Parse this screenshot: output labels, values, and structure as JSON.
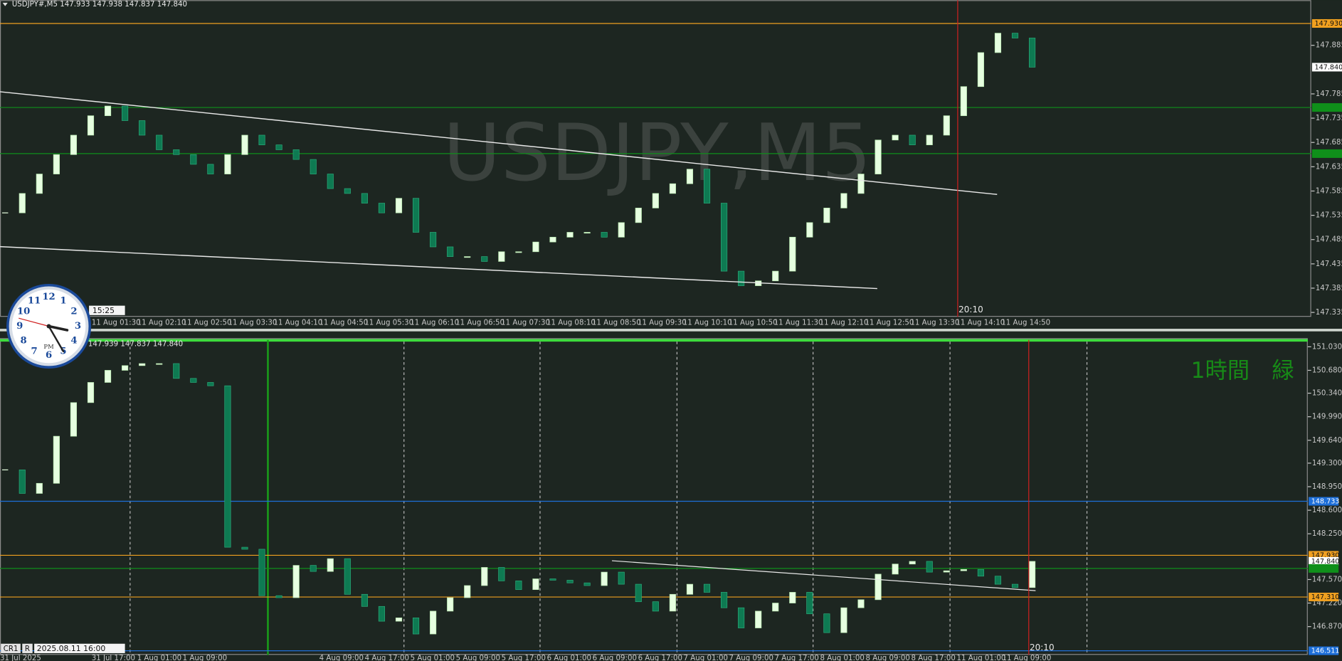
{
  "top": {
    "header": "USDJPY#,M5  147.933 147.938 147.837 147.840",
    "watermark": "USDJPY,M5",
    "ylim": [
      147.326,
      147.978
    ],
    "yticks": [
      147.885,
      147.785,
      147.735,
      147.685,
      147.635,
      147.585,
      147.535,
      147.485,
      147.435,
      147.385,
      147.335
    ],
    "levels": [
      {
        "value": 147.93,
        "label": "147.930",
        "color": "#f0a020"
      },
      {
        "value": 147.84,
        "label": "147.840",
        "color": "#ffffff"
      },
      {
        "value": 147.757,
        "color": "#0f8f1a"
      },
      {
        "value": 147.662,
        "color": "#0f8f1a"
      }
    ],
    "closes": [
      147.54,
      147.58,
      147.62,
      147.66,
      147.7,
      147.74,
      147.76,
      147.73,
      147.7,
      147.67,
      147.66,
      147.64,
      147.62,
      147.66,
      147.7,
      147.68,
      147.67,
      147.65,
      147.62,
      147.59,
      147.58,
      147.56,
      147.54,
      147.57,
      147.5,
      147.47,
      147.45,
      147.45,
      147.44,
      147.46,
      147.46,
      147.48,
      147.49,
      147.5,
      147.5,
      147.49,
      147.52,
      147.55,
      147.58,
      147.6,
      147.63,
      147.56,
      147.42,
      147.39,
      147.4,
      147.42,
      147.49,
      147.52,
      147.55,
      147.58,
      147.62,
      147.69,
      147.7,
      147.68,
      147.7,
      147.74,
      147.8,
      147.87,
      147.91,
      147.9,
      147.84
    ],
    "bull_color": "#e6ffe0",
    "bear_color": "#0e7a52",
    "xlabels": [
      "11 Aug 01:30",
      "11 Aug 02:10",
      "11 Aug 02:50",
      "11 Aug 03:30",
      "11 Aug 04:10",
      "11 Aug 04:50",
      "11 Aug 05:30",
      "11 Aug 06:10",
      "11 Aug 06:50",
      "11 Aug 07:30",
      "11 Aug 08:10",
      "11 Aug 08:50",
      "11 Aug 09:30",
      "11 Aug 10:10",
      "11 Aug 10:50",
      "11 Aug 11:30",
      "11 Aug 12:10",
      "11 Aug 12:50",
      "11 Aug 13:30",
      "11 Aug 14:10",
      "11 Aug 14:50"
    ],
    "cursor_time": "20:10",
    "clock_time": "15:25"
  },
  "bottom": {
    "header": "147.939 147.837 147.840",
    "annotation": "1時間　緑",
    "ylim": [
      146.45,
      151.132
    ],
    "yticks": [
      {
        "value": 151.03,
        "label": "151.030"
      },
      {
        "value": 150.68,
        "label": "150.680"
      },
      {
        "value": 150.34,
        "label": "150.340"
      },
      {
        "value": 149.99,
        "label": "149.990"
      },
      {
        "value": 149.64,
        "label": "149.640"
      },
      {
        "value": 149.3,
        "label": "149.300"
      },
      {
        "value": 148.95,
        "label": "148.950"
      },
      {
        "value": 148.6,
        "label": "148.600"
      },
      {
        "value": 148.25,
        "label": "148.250"
      },
      {
        "value": 147.57,
        "label": "147.570"
      },
      {
        "value": 147.22,
        "label": "147.220"
      },
      {
        "value": 146.87,
        "label": "146.870"
      }
    ],
    "levels": [
      {
        "value": 148.733,
        "label": "148.733",
        "color": "#1e6fd9"
      },
      {
        "value": 147.93,
        "label": "147.930",
        "color": "#f0a020"
      },
      {
        "value": 147.84,
        "label": "147.840",
        "color": "#ffffff"
      },
      {
        "value": 147.735,
        "color": "#0f8f1a"
      },
      {
        "value": 147.31,
        "label": "147.310",
        "color": "#f0a020"
      },
      {
        "value": 146.511,
        "label": "146.511",
        "color": "#1e6fd9"
      }
    ],
    "closes": [
      149.2,
      148.85,
      149.0,
      149.7,
      150.2,
      150.5,
      150.68,
      150.75,
      150.78,
      150.78,
      150.56,
      150.5,
      150.45,
      148.05,
      148.02,
      147.33,
      147.3,
      147.78,
      147.69,
      147.88,
      147.35,
      147.17,
      146.95,
      147.0,
      146.76,
      147.1,
      147.3,
      147.48,
      147.75,
      147.55,
      147.42,
      147.58,
      147.56,
      147.52,
      147.48,
      147.68,
      147.5,
      147.24,
      147.1,
      147.35,
      147.5,
      147.38,
      147.15,
      146.85,
      147.1,
      147.22,
      147.38,
      147.06,
      146.78,
      147.15,
      147.27,
      147.65,
      147.8,
      147.84,
      147.68,
      147.7,
      147.72,
      147.62,
      147.5,
      147.45,
      147.84
    ],
    "bull_color": "#e6ffe0",
    "bear_color": "#0e7a52",
    "xlabels": [
      "31 Jul 2025",
      "31 Jul 17:00",
      "1 Aug 01:00",
      "1 Aug 09:00",
      null,
      null,
      "4 Aug 09:00",
      "4 Aug 17:00",
      "5 Aug 01:00",
      "5 Aug 09:00",
      "5 Aug 17:00",
      "6 Aug 01:00",
      "6 Aug 09:00",
      "6 Aug 17:00",
      "7 Aug 01:00",
      "7 Aug 09:00",
      "7 Aug 17:00",
      "8 Aug 01:00",
      "8 Aug 09:00",
      "8 Aug 17:00",
      "11 Aug 01:00",
      "11 Aug 09:00"
    ],
    "cursor_time": "20:10",
    "status": [
      "CR1",
      "R",
      "2025.08.11 16:00"
    ]
  },
  "clock": {
    "numerals": [
      "12",
      "1",
      "2",
      "3",
      "4",
      "5",
      "6",
      "7",
      "8",
      "9",
      "10",
      "11"
    ],
    "meridiem": "PM"
  }
}
